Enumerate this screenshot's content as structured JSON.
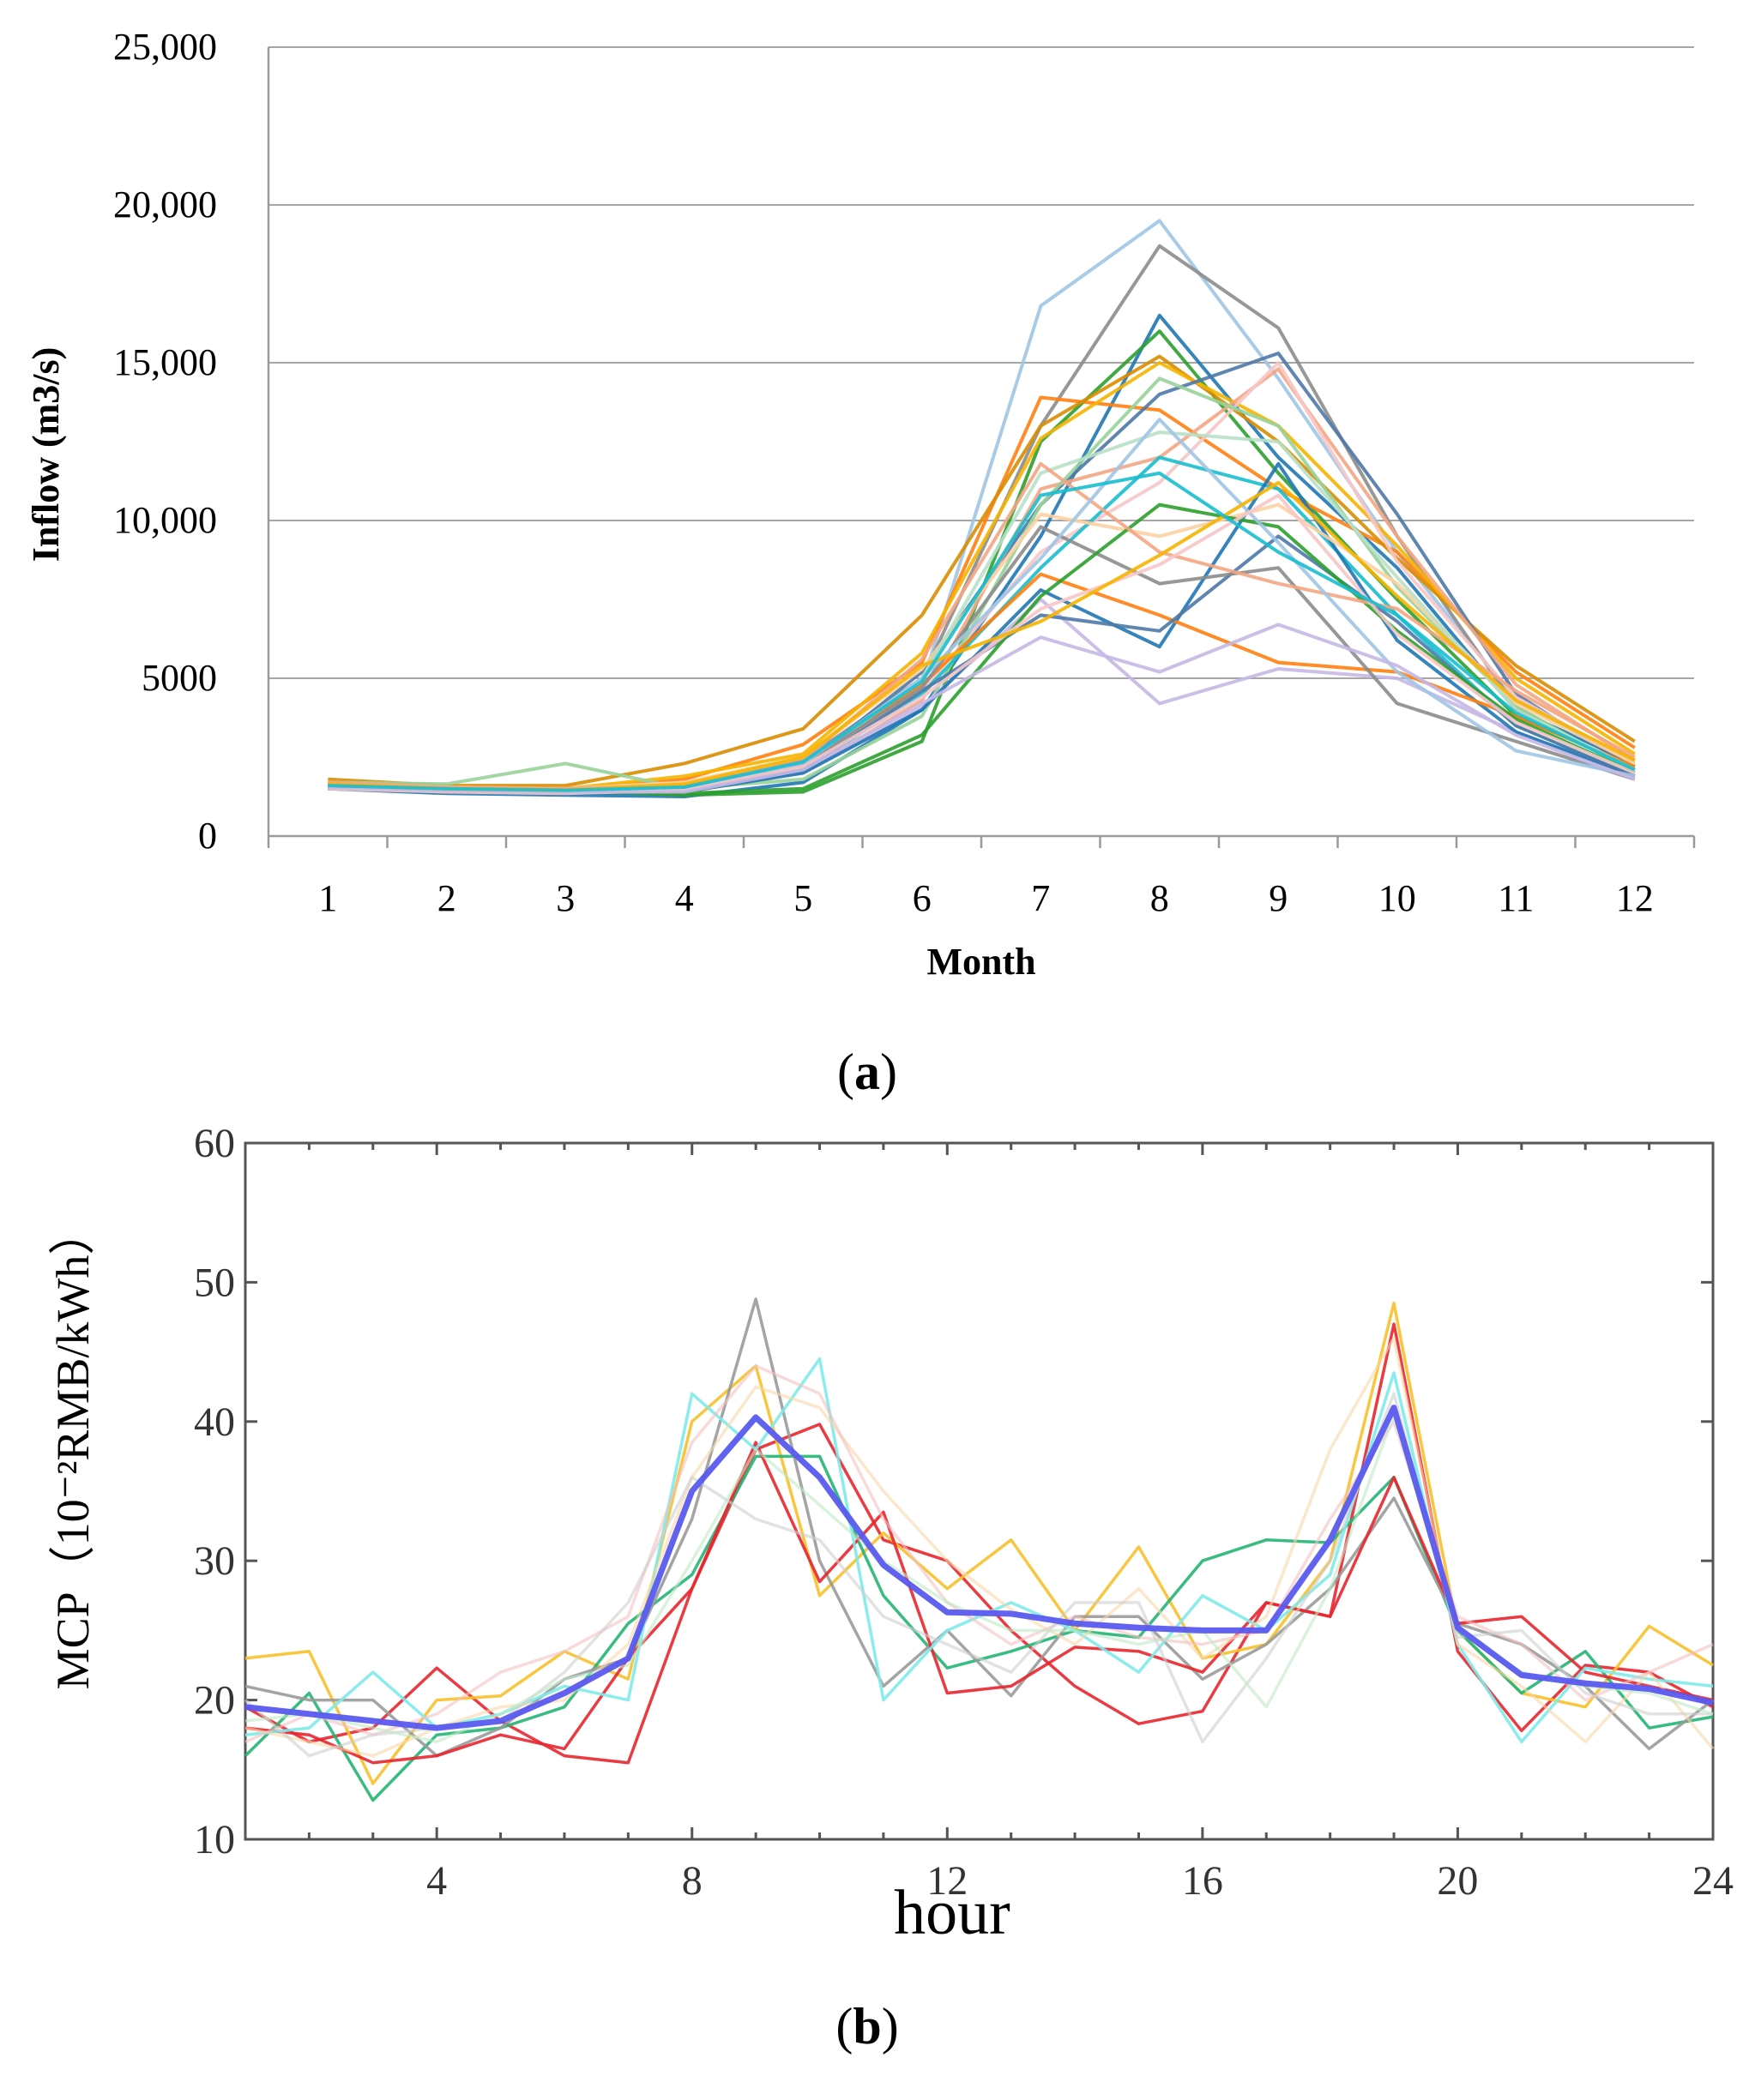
{
  "panel_labels": {
    "a": "a",
    "b": "b"
  },
  "chart_data": [
    {
      "type": "line",
      "panel": "a",
      "xlabel": "Month",
      "ylabel": "Inflow (m3/s)",
      "x": [
        1,
        2,
        3,
        4,
        5,
        6,
        7,
        8,
        9,
        10,
        11,
        12
      ],
      "xtick_labels": [
        "1",
        "2",
        "3",
        "4",
        "5",
        "6",
        "7",
        "8",
        "9",
        "10",
        "11",
        "12"
      ],
      "ytick_labels": [
        "0",
        "5000",
        "10,000",
        "15,000",
        "20,000",
        "25,000"
      ],
      "ylim": [
        0,
        25000
      ],
      "grid": true,
      "colors": {
        "blue": "#1f77b4",
        "lightblue": "#9ec5e6",
        "orange": "#ff7f0e",
        "gold": "#f6b400",
        "gray": "#8c8c8c",
        "green": "#2ca02c",
        "lightgreen": "#98d39a",
        "salmon": "#f4a582",
        "pink": "#f7c6c7",
        "lavender": "#c5b8e6",
        "teal": "#17becf",
        "darkorange": "#d98c00",
        "steel": "#4e79a7",
        "peach": "#fdd0a2",
        "mint": "#b8e0c8"
      },
      "series": [
        {
          "color": "lightblue",
          "values": [
            1650,
            1500,
            1450,
            1550,
            2100,
            4800,
            16800,
            19500,
            14500,
            9000,
            4300,
            2200
          ]
        },
        {
          "color": "gray",
          "values": [
            1550,
            1400,
            1400,
            1500,
            2400,
            5000,
            13000,
            18700,
            16100,
            9500,
            4100,
            2000
          ]
        },
        {
          "color": "blue",
          "values": [
            1500,
            1350,
            1300,
            1250,
            1700,
            4000,
            9500,
            16500,
            12000,
            8500,
            4000,
            2300
          ]
        },
        {
          "color": "green",
          "values": [
            1600,
            1500,
            1450,
            1300,
            1400,
            3000,
            12500,
            16000,
            11500,
            7500,
            3800,
            2200
          ]
        },
        {
          "color": "orange",
          "values": [
            1700,
            1500,
            1500,
            1800,
            2900,
            5500,
            13900,
            13500,
            11000,
            9000,
            5200,
            2800
          ]
        },
        {
          "color": "darkorange",
          "values": [
            1800,
            1600,
            1600,
            2300,
            3400,
            7000,
            13000,
            15200,
            12500,
            8800,
            5400,
            3000
          ]
        },
        {
          "color": "gold",
          "values": [
            1700,
            1550,
            1500,
            1900,
            2600,
            5800,
            12600,
            15000,
            13000,
            9200,
            5000,
            2600
          ]
        },
        {
          "color": "steel",
          "values": [
            1550,
            1400,
            1350,
            1450,
            2200,
            5200,
            10500,
            14000,
            15300,
            10200,
            4500,
            2100
          ]
        },
        {
          "color": "salmon",
          "values": [
            1500,
            1450,
            1400,
            1400,
            2000,
            4300,
            11000,
            12000,
            14800,
            9500,
            4800,
            2400
          ]
        },
        {
          "color": "pink",
          "values": [
            1600,
            1500,
            1450,
            1500,
            2300,
            4600,
            9000,
            11200,
            15000,
            8700,
            4400,
            2300
          ]
        },
        {
          "color": "lightgreen",
          "values": [
            1700,
            1650,
            2300,
            1500,
            1800,
            3800,
            10500,
            14500,
            13000,
            7900,
            4100,
            2000
          ]
        },
        {
          "color": "lavender",
          "values": [
            1600,
            1450,
            1400,
            1450,
            2000,
            4100,
            7500,
            4200,
            5300,
            5000,
            3300,
            1800
          ]
        },
        {
          "color": "teal",
          "values": [
            1550,
            1450,
            1400,
            1500,
            2100,
            4500,
            8500,
            12000,
            11000,
            7000,
            3500,
            1900
          ]
        },
        {
          "color": "blue",
          "values": [
            1500,
            1400,
            1350,
            1400,
            2000,
            4000,
            7800,
            6000,
            11800,
            6200,
            3300,
            1900
          ]
        },
        {
          "color": "orange",
          "values": [
            1600,
            1500,
            1450,
            1600,
            2300,
            4800,
            8300,
            7000,
            5500,
            5200,
            3800,
            2200
          ]
        },
        {
          "color": "peach",
          "values": [
            1650,
            1550,
            1500,
            1700,
            2500,
            5300,
            10200,
            9500,
            10500,
            8000,
            4200,
            2300
          ]
        },
        {
          "color": "mint",
          "values": [
            1550,
            1500,
            1450,
            1550,
            2200,
            5000,
            11500,
            12800,
            12500,
            8200,
            4000,
            2100
          ]
        },
        {
          "color": "steel",
          "values": [
            1500,
            1400,
            1400,
            1450,
            2100,
            4600,
            7000,
            6500,
            9500,
            6800,
            3500,
            1900
          ]
        },
        {
          "color": "gray",
          "values": [
            1600,
            1450,
            1400,
            1500,
            2250,
            4700,
            9800,
            8000,
            8500,
            4200,
            3000,
            1800
          ]
        },
        {
          "color": "green",
          "values": [
            1550,
            1450,
            1400,
            1350,
            1500,
            3200,
            7600,
            10500,
            9800,
            6500,
            3700,
            2000
          ]
        },
        {
          "color": "salmon",
          "values": [
            1700,
            1550,
            1500,
            1600,
            2400,
            5600,
            11800,
            9000,
            8000,
            7200,
            4600,
            2500
          ]
        },
        {
          "color": "lightblue",
          "values": [
            1600,
            1500,
            1450,
            1500,
            2300,
            5000,
            8800,
            13200,
            9300,
            5200,
            2700,
            1900
          ]
        },
        {
          "color": "pink",
          "values": [
            1500,
            1400,
            1350,
            1450,
            2200,
            4400,
            7200,
            8600,
            10800,
            6400,
            3600,
            2000
          ]
        },
        {
          "color": "lavender",
          "values": [
            1550,
            1450,
            1400,
            1400,
            2100,
            4200,
            6300,
            5200,
            6700,
            5400,
            3200,
            1800
          ]
        },
        {
          "color": "gold",
          "values": [
            1650,
            1500,
            1450,
            1650,
            2500,
            5400,
            6800,
            8900,
            11200,
            7600,
            4300,
            2400
          ]
        },
        {
          "color": "teal",
          "values": [
            1600,
            1500,
            1450,
            1550,
            2350,
            4900,
            10800,
            11500,
            9000,
            7000,
            3900,
            2100
          ]
        }
      ]
    },
    {
      "type": "line",
      "panel": "b",
      "xlabel": "hour",
      "ylabel": "MCP（10⁻²RMB/kWh）",
      "x": [
        1,
        2,
        3,
        4,
        5,
        6,
        7,
        8,
        9,
        10,
        11,
        12,
        13,
        14,
        15,
        16,
        17,
        18,
        19,
        20,
        21,
        22,
        23,
        24
      ],
      "xtick_labels": [
        "4",
        "8",
        "12",
        "16",
        "20",
        "24"
      ],
      "ytick_labels": [
        "10",
        "20",
        "30",
        "40",
        "50",
        "60"
      ],
      "ylim": [
        10,
        60
      ],
      "xlim": [
        1,
        24
      ],
      "grid": false,
      "colors": {
        "red": "#e8262e",
        "gold": "#f7c02a",
        "green": "#23b573",
        "gray": "#9a9a9a",
        "cyan": "#7eeaea",
        "lightorange": "#f9d7a8",
        "lightpink": "#f4c2c2",
        "lightgray": "#cfcfcf",
        "palegreen": "#bfe9c8",
        "mean": "#5a5af0"
      },
      "series": [
        {
          "color": "red",
          "values": [
            19.5,
            17,
            18,
            22.3,
            18.5,
            16,
            15.5,
            28,
            38,
            39.8,
            31.5,
            30,
            25,
            21,
            18.3,
            19.2,
            27,
            26,
            47,
            23.5,
            17.8,
            22.5,
            22,
            19.5
          ]
        },
        {
          "color": "gold",
          "values": [
            23,
            23.5,
            14,
            20,
            20.3,
            23.5,
            21.5,
            40,
            44,
            27.5,
            32,
            28,
            31.5,
            25,
            31,
            23,
            24,
            30,
            48.5,
            25,
            20.5,
            19.5,
            25.3,
            22.5
          ]
        },
        {
          "color": "green",
          "values": [
            16,
            20.5,
            12.8,
            17.5,
            18,
            19.5,
            25.5,
            29,
            37.5,
            37.5,
            27.5,
            22.3,
            23.5,
            25,
            24.5,
            30,
            31.5,
            31.3,
            36,
            25,
            20.5,
            23.5,
            18,
            18.8
          ]
        },
        {
          "color": "gray",
          "values": [
            21,
            20,
            20,
            16,
            18,
            21.5,
            23,
            33,
            48.8,
            30,
            21,
            25,
            20.3,
            26,
            26,
            21.5,
            24,
            28,
            34.5,
            25.5,
            24,
            21,
            16.5,
            20
          ]
        },
        {
          "color": "red",
          "values": [
            18,
            17.5,
            15.5,
            16,
            17.5,
            16.5,
            23,
            28,
            38.5,
            28.5,
            33.5,
            20.5,
            21,
            23.8,
            23.5,
            22,
            27,
            26,
            36,
            25.5,
            26,
            22,
            21,
            20
          ]
        },
        {
          "color": "cyan",
          "values": [
            17.5,
            18,
            22,
            18,
            19,
            21,
            20,
            42,
            38,
            44.5,
            20,
            25,
            27,
            25,
            22,
            27.5,
            25,
            29,
            43.5,
            24,
            17,
            22.3,
            21.5,
            21
          ]
        },
        {
          "color": "lightorange",
          "values": [
            18,
            17,
            16,
            18,
            19.5,
            20,
            24,
            36,
            42.5,
            41,
            35,
            30,
            26.5,
            24,
            28,
            23,
            26,
            38,
            46,
            24,
            21,
            17,
            22,
            16.5
          ]
        },
        {
          "color": "lightpink",
          "values": [
            17,
            19,
            17.5,
            19,
            22,
            23.5,
            26,
            38.5,
            44,
            42,
            33,
            27,
            24,
            26,
            24.5,
            24,
            25,
            33,
            40,
            26,
            24,
            20,
            22,
            24
          ]
        },
        {
          "color": "lightgray",
          "values": [
            20,
            16,
            17.5,
            18,
            18.5,
            22,
            27,
            36,
            33,
            31.5,
            26,
            24,
            22,
            27,
            27,
            17,
            23,
            30,
            42,
            24.5,
            25,
            20.5,
            19,
            19
          ]
        },
        {
          "color": "palegreen",
          "values": [
            18.5,
            19,
            18,
            17,
            19,
            21.5,
            22.5,
            30,
            38,
            34,
            30,
            27,
            25,
            25,
            24,
            25,
            19.5,
            28,
            40.5,
            25,
            22,
            21,
            20.5,
            19
          ]
        },
        {
          "color": "mean",
          "values": [
            19.5,
            19,
            18.5,
            18,
            18.5,
            20.5,
            23,
            35,
            40.3,
            36,
            29.7,
            26.3,
            26.2,
            25.5,
            25.2,
            25,
            25,
            31.5,
            41,
            25.2,
            21.8,
            21.2,
            20.8,
            19.8
          ]
        }
      ]
    }
  ]
}
